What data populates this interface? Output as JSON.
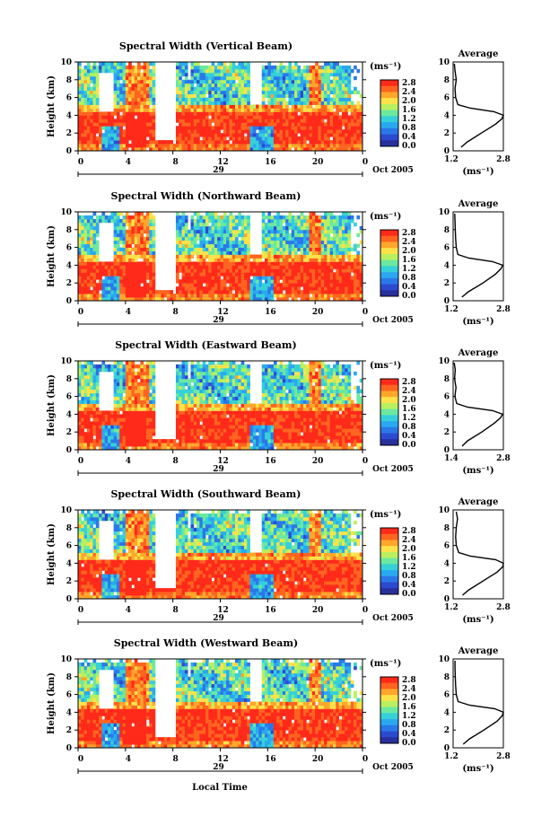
{
  "colorbar": {
    "unit": "(ms⁻¹)",
    "ticks": [
      "2.8",
      "2.4",
      "2.0",
      "1.6",
      "1.2",
      "0.8",
      "0.4",
      "0.0"
    ],
    "colors": [
      "#ff2a1a",
      "#ff6420",
      "#ffa62c",
      "#ffe24a",
      "#b8f060",
      "#6ce8a0",
      "#36d0d8",
      "#2aa8f0",
      "#2a78e8",
      "#2c4ad0",
      "#28309c"
    ]
  },
  "common": {
    "y_axis_label": "Height (km)",
    "x_tick_labels": [
      "0",
      "4",
      "8",
      "12",
      "16",
      "20",
      "0"
    ],
    "date_marker": "29",
    "date_label": "Oct 2005",
    "y_tick_labels": [
      "0",
      "2",
      "4",
      "6",
      "8",
      "10"
    ],
    "avg_title": "Average",
    "avg_unit_label": "(ms⁻¹)",
    "avg_y_tick_labels": [
      "0",
      "2",
      "4",
      "6",
      "8",
      "10"
    ]
  },
  "x_axis_title": "Local Time",
  "chart_data": [
    {
      "type": "heatmap",
      "title": "Spectral Width (Vertical Beam)",
      "ylabel": "Height (km)",
      "xlabel": "",
      "x_ticks": [
        0,
        4,
        8,
        12,
        16,
        20,
        24
      ],
      "xlim": [
        0,
        24
      ],
      "ylim": [
        0,
        10
      ],
      "color_range": [
        0.0,
        2.8
      ],
      "average_profile": {
        "title": "Average",
        "xlabel": "(ms⁻¹)",
        "xlim": [
          1.2,
          2.8
        ],
        "x_tick_labels": [
          "1.2",
          "2.8"
        ],
        "height": [
          0.4,
          1.0,
          2.0,
          3.0,
          3.6,
          4.0,
          4.4,
          4.8,
          5.2,
          6.0,
          7.0,
          8.0,
          9.0,
          9.8
        ],
        "width": [
          1.45,
          1.65,
          2.1,
          2.55,
          2.75,
          2.8,
          2.5,
          1.75,
          1.35,
          1.28,
          1.26,
          1.3,
          1.26,
          1.24
        ]
      }
    },
    {
      "type": "heatmap",
      "title": "Spectral Width (Northward Beam)",
      "ylabel": "Height (km)",
      "xlabel": "",
      "x_ticks": [
        0,
        4,
        8,
        12,
        16,
        20,
        24
      ],
      "xlim": [
        0,
        24
      ],
      "ylim": [
        0,
        10
      ],
      "color_range": [
        0.0,
        2.8
      ],
      "average_profile": {
        "title": "Average",
        "xlabel": "(ms⁻¹)",
        "xlim": [
          1.2,
          2.8
        ],
        "x_tick_labels": [
          "1.2",
          "2.8"
        ],
        "height": [
          0.4,
          1.0,
          2.0,
          3.0,
          3.6,
          4.0,
          4.4,
          4.8,
          5.2,
          6.0,
          7.0,
          8.0,
          9.0,
          9.8
        ],
        "width": [
          1.48,
          1.68,
          2.15,
          2.55,
          2.72,
          2.78,
          2.45,
          1.7,
          1.35,
          1.3,
          1.28,
          1.27,
          1.26,
          1.25
        ]
      }
    },
    {
      "type": "heatmap",
      "title": "Spectral Width (Eastward Beam)",
      "ylabel": "Height (km)",
      "xlabel": "",
      "x_ticks": [
        0,
        4,
        8,
        12,
        16,
        20,
        24
      ],
      "xlim": [
        0,
        24
      ],
      "ylim": [
        0,
        10
      ],
      "color_range": [
        0.0,
        2.8
      ],
      "average_profile": {
        "title": "Average",
        "xlabel": "(ms⁻¹)",
        "xlim": [
          1.4,
          2.8
        ],
        "x_tick_labels": [
          "1.4",
          "2.8"
        ],
        "height": [
          0.4,
          1.0,
          2.0,
          3.0,
          3.6,
          4.0,
          4.4,
          4.8,
          5.2,
          6.0,
          7.0,
          8.0,
          9.0,
          9.8
        ],
        "width": [
          1.65,
          1.8,
          2.2,
          2.55,
          2.72,
          2.78,
          2.5,
          1.8,
          1.5,
          1.45,
          1.48,
          1.44,
          1.46,
          1.43
        ]
      }
    },
    {
      "type": "heatmap",
      "title": "Spectral Width (Southward Beam)",
      "ylabel": "Height (km)",
      "xlabel": "",
      "x_ticks": [
        0,
        4,
        8,
        12,
        16,
        20,
        24
      ],
      "xlim": [
        0,
        24
      ],
      "ylim": [
        0,
        10
      ],
      "color_range": [
        0.0,
        2.8
      ],
      "average_profile": {
        "title": "Average",
        "xlabel": "(ms⁻¹)",
        "xlim": [
          1.2,
          2.8
        ],
        "x_tick_labels": [
          "1.2",
          "2.8"
        ],
        "height": [
          0.4,
          1.0,
          2.0,
          3.0,
          3.6,
          4.0,
          4.4,
          4.8,
          5.2,
          6.0,
          7.0,
          8.0,
          9.0,
          9.8
        ],
        "width": [
          1.5,
          1.7,
          2.15,
          2.6,
          2.78,
          2.8,
          2.55,
          1.75,
          1.38,
          1.3,
          1.28,
          1.3,
          1.34,
          1.3
        ]
      }
    },
    {
      "type": "heatmap",
      "title": "Spectral Width (Westward Beam)",
      "ylabel": "Height (km)",
      "xlabel": "Local Time",
      "x_ticks": [
        0,
        4,
        8,
        12,
        16,
        20,
        24
      ],
      "xlim": [
        0,
        24
      ],
      "ylim": [
        0,
        10
      ],
      "color_range": [
        0.0,
        2.8
      ],
      "average_profile": {
        "title": "Average",
        "xlabel": "(ms⁻¹)",
        "xlim": [
          1.2,
          2.8
        ],
        "x_tick_labels": [
          "1.2",
          "2.8"
        ],
        "height": [
          0.4,
          1.0,
          2.0,
          3.0,
          3.6,
          4.0,
          4.4,
          4.8,
          5.2,
          6.0,
          7.0,
          8.0,
          9.0,
          9.8
        ],
        "width": [
          1.52,
          1.72,
          2.18,
          2.6,
          2.76,
          2.8,
          2.52,
          1.72,
          1.36,
          1.3,
          1.28,
          1.27,
          1.26,
          1.26
        ]
      }
    }
  ]
}
